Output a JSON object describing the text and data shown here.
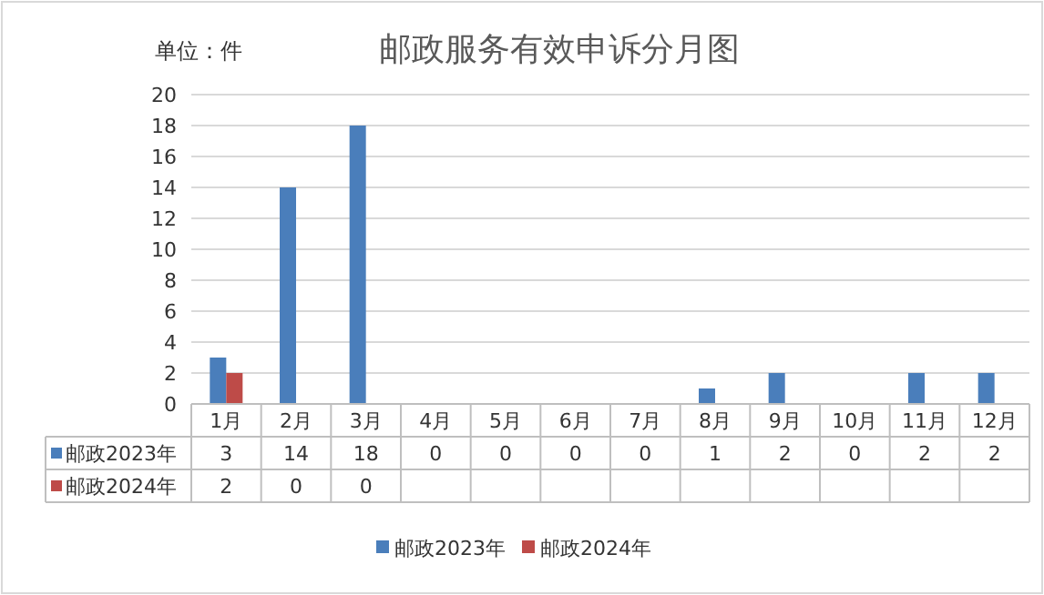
{
  "chart_data": {
    "type": "bar",
    "title": "邮政服务有效申诉分月图",
    "annotations": [
      "单位：件"
    ],
    "categories": [
      "1月",
      "2月",
      "3月",
      "4月",
      "5月",
      "6月",
      "7月",
      "8月",
      "9月",
      "10月",
      "11月",
      "12月"
    ],
    "series": [
      {
        "name": "邮政2023年",
        "color": "#4a7ebb",
        "values": [
          3,
          14,
          18,
          0,
          0,
          0,
          0,
          1,
          2,
          0,
          2,
          2
        ]
      },
      {
        "name": "邮政2024年",
        "color": "#be4b48",
        "values": [
          2,
          0,
          0,
          null,
          null,
          null,
          null,
          null,
          null,
          null,
          null,
          null
        ]
      }
    ],
    "ylim": [
      0,
      20
    ],
    "yticks": [
      0,
      2,
      4,
      6,
      8,
      10,
      12,
      14,
      16,
      18,
      20
    ],
    "grid": "y",
    "legend": "bottom",
    "data_labels": true
  }
}
